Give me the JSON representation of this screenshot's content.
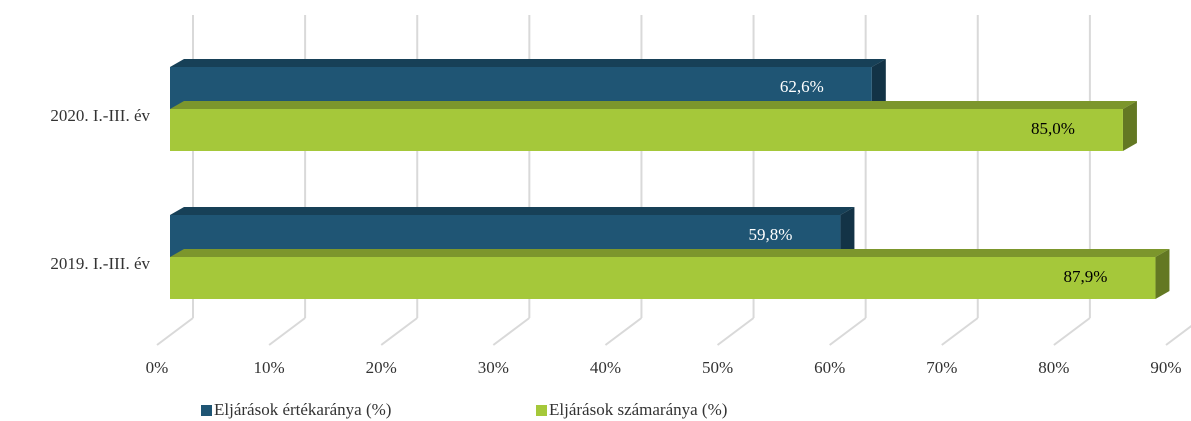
{
  "chart_data": {
    "type": "bar3d_horizontal",
    "categories": [
      "2020. I.-III. év",
      "2019. I.-III. év"
    ],
    "series": [
      {
        "name": "Eljárások értékaránya (%)",
        "color": "#1f5574",
        "values": [
          62.6,
          59.8
        ],
        "value_labels": [
          "62,6%",
          "59,8%"
        ]
      },
      {
        "name": "Eljárások számaránya (%)",
        "color": "#a5c83a",
        "values": [
          85.0,
          87.9
        ],
        "value_labels": [
          "85,0%",
          "87,9%"
        ]
      }
    ],
    "xlim": [
      0,
      90
    ],
    "xticks": [
      {
        "value": 0,
        "label": "0%"
      },
      {
        "value": 10,
        "label": "10%"
      },
      {
        "value": 20,
        "label": "20%"
      },
      {
        "value": 30,
        "label": "30%"
      },
      {
        "value": 40,
        "label": "40%"
      },
      {
        "value": 50,
        "label": "50%"
      },
      {
        "value": 60,
        "label": "60%"
      },
      {
        "value": 70,
        "label": "70%"
      },
      {
        "value": 80,
        "label": "80%"
      },
      {
        "value": 90,
        "label": "90%"
      }
    ],
    "grid": true,
    "legend": "bottom"
  }
}
